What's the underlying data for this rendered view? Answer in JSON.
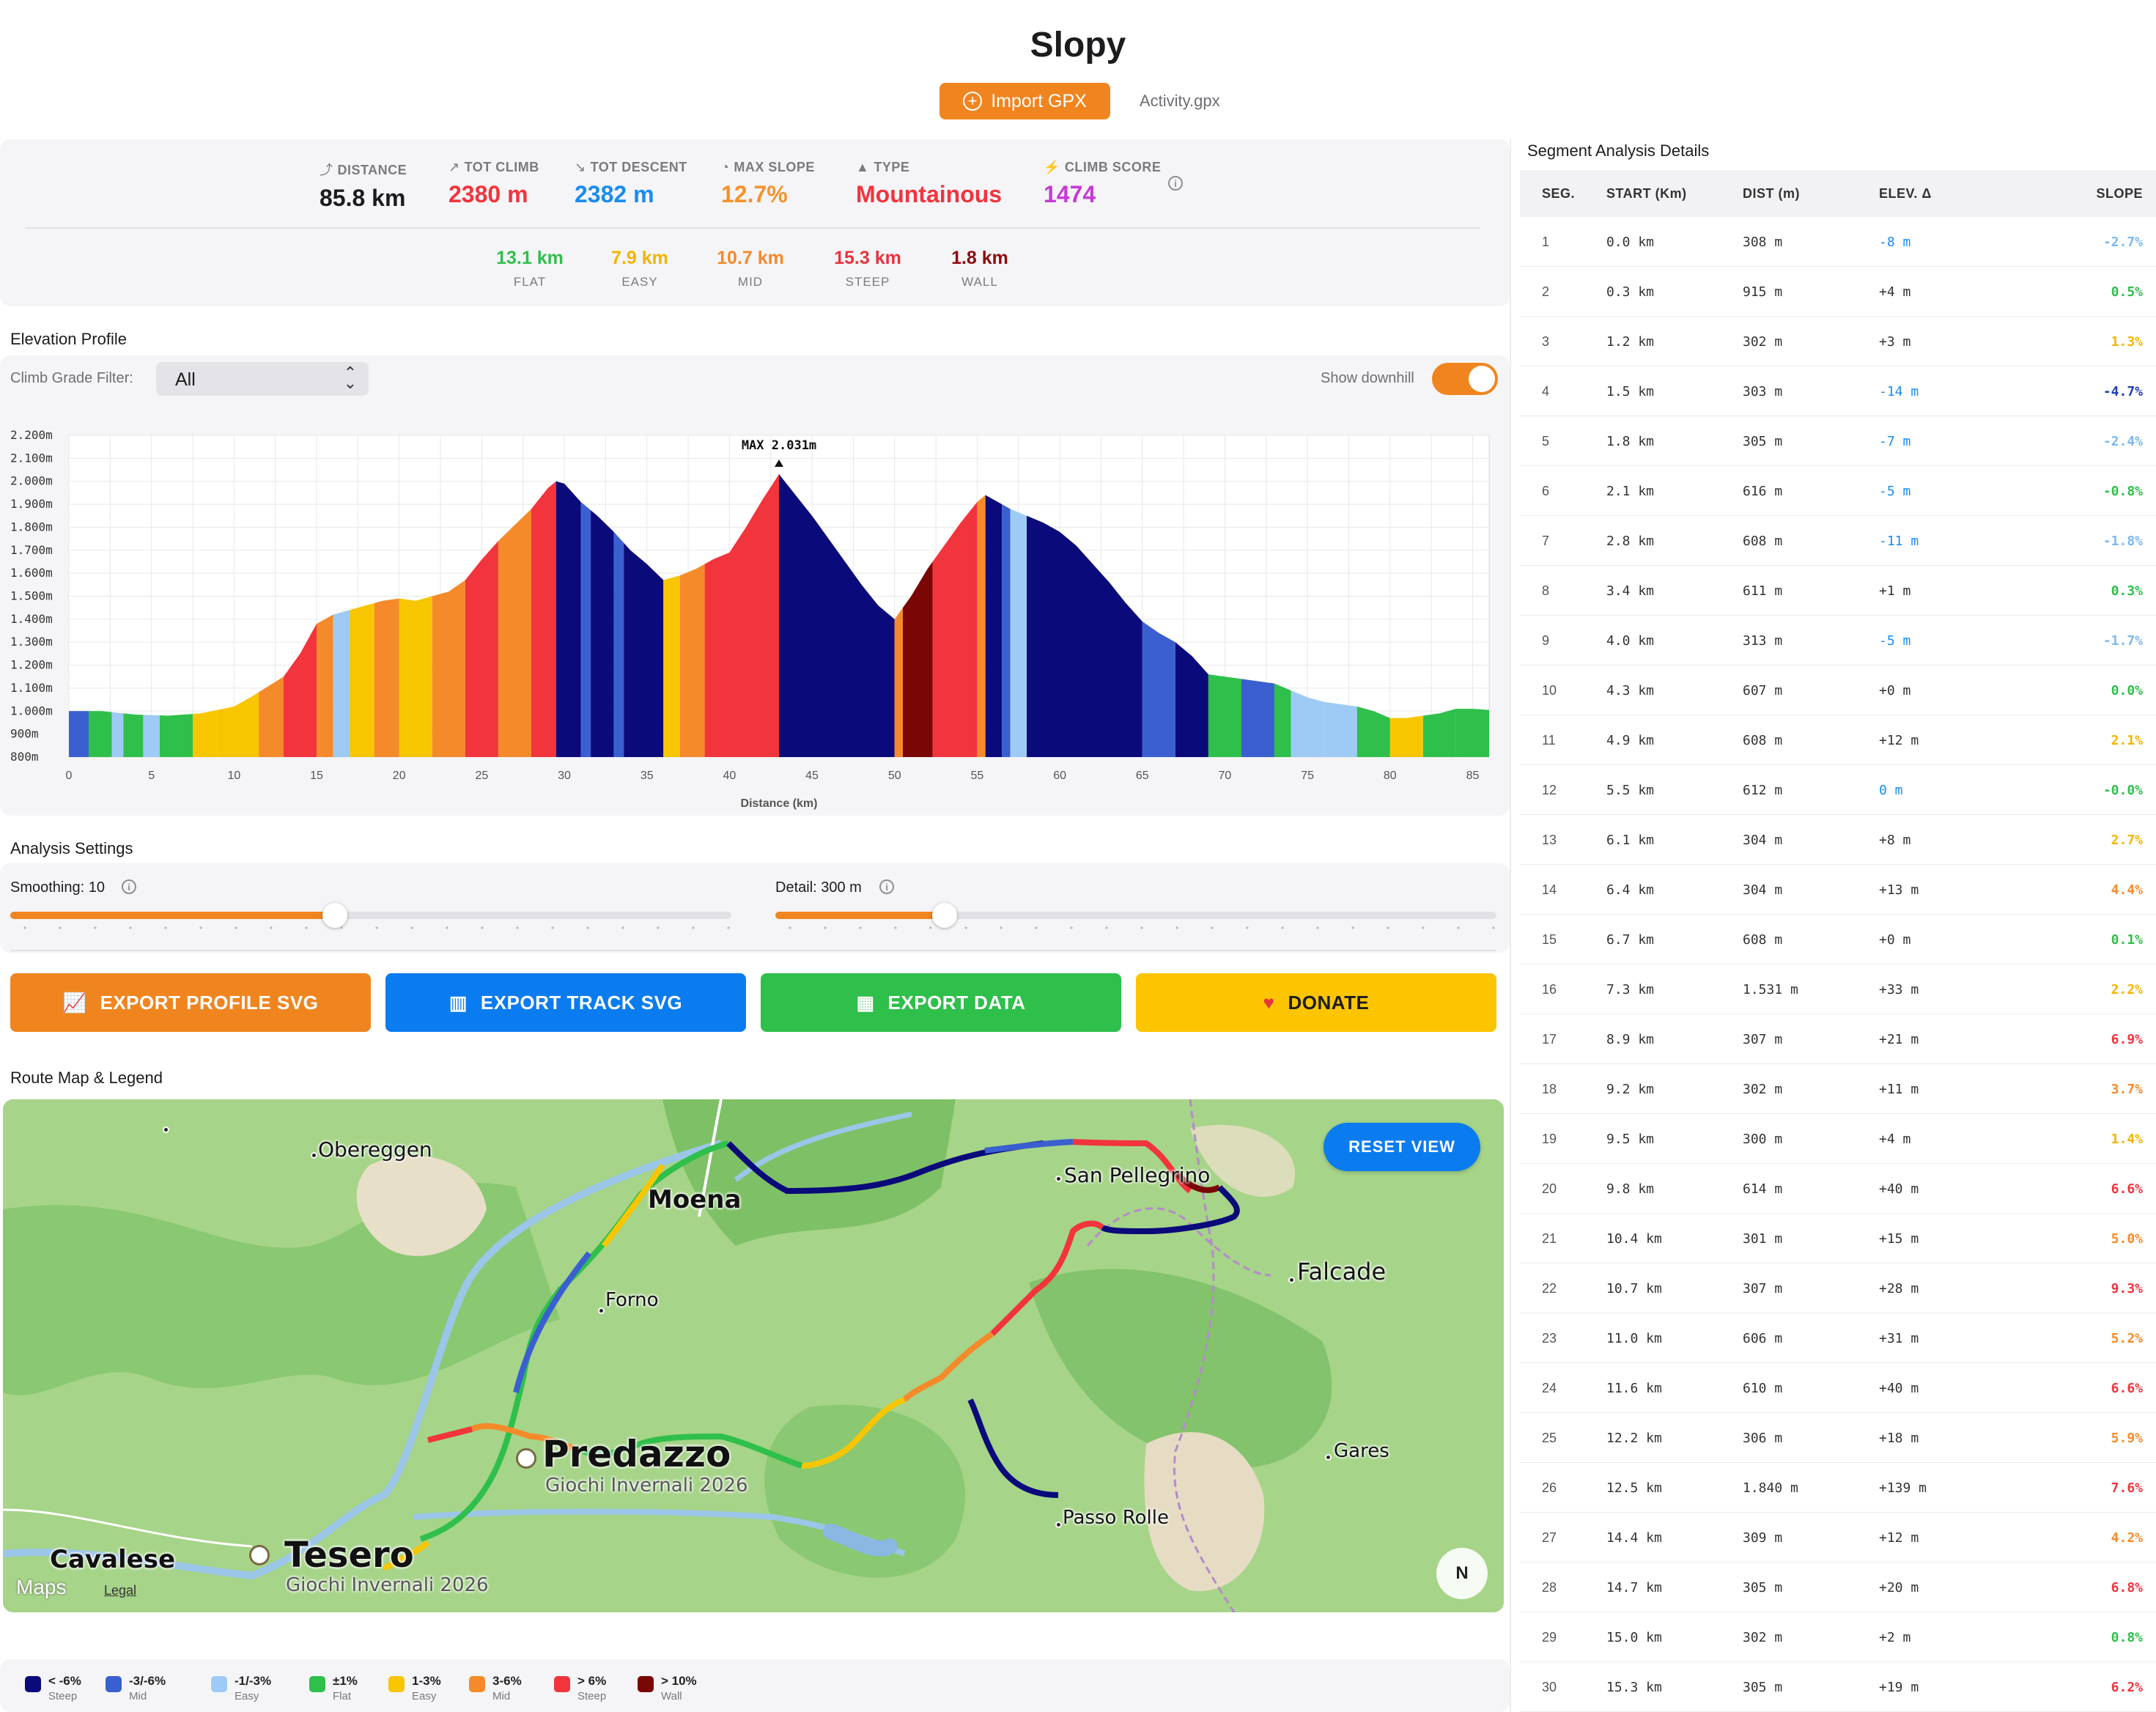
{
  "app": {
    "title": "Slopy",
    "import_label": "Import GPX",
    "filename": "Activity.gpx"
  },
  "stats": [
    {
      "icon": "route-icon",
      "glyph": "⤴",
      "label": "DISTANCE",
      "value": "85.8 km",
      "color": "#1c1c1e"
    },
    {
      "icon": "climb-icon",
      "glyph": "↗",
      "label": "TOT CLIMB",
      "value": "2380 m",
      "color": "#f2343d"
    },
    {
      "icon": "descent-icon",
      "glyph": "↘",
      "label": "TOT DESCENT",
      "value": "2382 m",
      "color": "#1a8cf0"
    },
    {
      "icon": "gauge-icon",
      "glyph": "◔",
      "label": "MAX SLOPE",
      "value": "12.7%",
      "color": "#f5922b"
    },
    {
      "icon": "mountain-icon",
      "glyph": "▲",
      "label": "TYPE",
      "value": "Mountainous",
      "color": "#f2343d"
    },
    {
      "icon": "bolt-icon",
      "glyph": "⚡",
      "label": "CLIMB SCORE",
      "value": "1474",
      "color": "#c73ad8"
    }
  ],
  "categories": [
    {
      "value": "13.1 km",
      "label": "FLAT",
      "color": "#2fbf4b"
    },
    {
      "value": "7.9 km",
      "label": "EASY",
      "color": "#f4b400"
    },
    {
      "value": "10.7 km",
      "label": "MID",
      "color": "#f5882b"
    },
    {
      "value": "15.3 km",
      "label": "STEEP",
      "color": "#e8333d"
    },
    {
      "value": "1.8 km",
      "label": "WALL",
      "color": "#8b0d0d"
    }
  ],
  "elevation": {
    "section_title": "Elevation Profile",
    "filter_label": "Climb Grade Filter:",
    "filter_value": "All",
    "downhill_label": "Show downhill",
    "show_downhill": true,
    "max_label": "MAX 2.031m",
    "x_label": "Distance (km)"
  },
  "chart_data": {
    "type": "area",
    "xlabel": "Distance (km)",
    "ylabel": "",
    "xlim": [
      0,
      86
    ],
    "ylim": [
      800,
      2200
    ],
    "x_ticks": [
      "0",
      "5",
      "10",
      "15",
      "20",
      "25",
      "30",
      "35",
      "40",
      "45",
      "50",
      "55",
      "60",
      "65",
      "70",
      "75",
      "80",
      "85"
    ],
    "y_ticks": [
      "2.200m",
      "2.100m",
      "2.000m",
      "1.900m",
      "1.800m",
      "1.700m",
      "1.600m",
      "1.500m",
      "1.400m",
      "1.300m",
      "1.200m",
      "1.100m",
      "1.000m",
      "900m",
      "800m"
    ],
    "grid": true,
    "annotation": {
      "text": "MAX 2.031m",
      "x": 43,
      "y": 2031
    },
    "profile": [
      [
        0,
        1000
      ],
      [
        2,
        1000
      ],
      [
        4,
        985
      ],
      [
        6,
        980
      ],
      [
        8,
        990
      ],
      [
        10,
        1020
      ],
      [
        11,
        1060
      ],
      [
        13,
        1150
      ],
      [
        14,
        1250
      ],
      [
        15,
        1380
      ],
      [
        16,
        1420
      ],
      [
        17,
        1440
      ],
      [
        18,
        1460
      ],
      [
        19,
        1480
      ],
      [
        20,
        1490
      ],
      [
        21,
        1480
      ],
      [
        22,
        1500
      ],
      [
        23,
        1520
      ],
      [
        24,
        1570
      ],
      [
        25,
        1660
      ],
      [
        26,
        1740
      ],
      [
        27,
        1810
      ],
      [
        28,
        1880
      ],
      [
        29,
        1970
      ],
      [
        29.5,
        2000
      ],
      [
        30,
        1990
      ],
      [
        31,
        1910
      ],
      [
        32,
        1850
      ],
      [
        33,
        1780
      ],
      [
        34,
        1700
      ],
      [
        35,
        1640
      ],
      [
        36,
        1570
      ],
      [
        37,
        1590
      ],
      [
        38,
        1620
      ],
      [
        39,
        1660
      ],
      [
        40,
        1690
      ],
      [
        41,
        1800
      ],
      [
        42,
        1920
      ],
      [
        43,
        2031
      ],
      [
        44,
        1940
      ],
      [
        45,
        1850
      ],
      [
        46,
        1750
      ],
      [
        47,
        1650
      ],
      [
        48,
        1550
      ],
      [
        49,
        1460
      ],
      [
        50,
        1400
      ],
      [
        51,
        1500
      ],
      [
        52,
        1620
      ],
      [
        53,
        1720
      ],
      [
        54,
        1820
      ],
      [
        55,
        1910
      ],
      [
        55.5,
        1940
      ],
      [
        56,
        1920
      ],
      [
        57,
        1880
      ],
      [
        58,
        1850
      ],
      [
        59,
        1820
      ],
      [
        60,
        1780
      ],
      [
        61,
        1720
      ],
      [
        62,
        1640
      ],
      [
        63,
        1560
      ],
      [
        64,
        1470
      ],
      [
        65,
        1390
      ],
      [
        66,
        1340
      ],
      [
        67,
        1300
      ],
      [
        68,
        1240
      ],
      [
        69,
        1160
      ],
      [
        70,
        1150
      ],
      [
        71,
        1140
      ],
      [
        72,
        1130
      ],
      [
        73,
        1120
      ],
      [
        74,
        1090
      ],
      [
        75,
        1060
      ],
      [
        76,
        1040
      ],
      [
        77,
        1030
      ],
      [
        78,
        1020
      ],
      [
        79,
        1000
      ],
      [
        80,
        970
      ],
      [
        81,
        970
      ],
      [
        82,
        980
      ],
      [
        83,
        990
      ],
      [
        84,
        1010
      ],
      [
        85,
        1010
      ],
      [
        86,
        1005
      ]
    ],
    "segments": [
      {
        "from": 0,
        "to": 1.2,
        "grade": "mid-down"
      },
      {
        "from": 1.2,
        "to": 2.6,
        "grade": "flat"
      },
      {
        "from": 2.6,
        "to": 3.3,
        "grade": "easy-down"
      },
      {
        "from": 3.3,
        "to": 4.5,
        "grade": "flat"
      },
      {
        "from": 4.5,
        "to": 5.5,
        "grade": "easy-down"
      },
      {
        "from": 5.5,
        "to": 7.5,
        "grade": "flat"
      },
      {
        "from": 7.5,
        "to": 9,
        "grade": "easy"
      },
      {
        "from": 9,
        "to": 11.5,
        "grade": "easy"
      },
      {
        "from": 11.5,
        "to": 13,
        "grade": "mid"
      },
      {
        "from": 13,
        "to": 15,
        "grade": "steep"
      },
      {
        "from": 15,
        "to": 16,
        "grade": "mid"
      },
      {
        "from": 16,
        "to": 17,
        "grade": "easy-down"
      },
      {
        "from": 17,
        "to": 18.5,
        "grade": "easy"
      },
      {
        "from": 18.5,
        "to": 20,
        "grade": "mid"
      },
      {
        "from": 20,
        "to": 22,
        "grade": "easy"
      },
      {
        "from": 22,
        "to": 24,
        "grade": "mid"
      },
      {
        "from": 24,
        "to": 26,
        "grade": "steep"
      },
      {
        "from": 26,
        "to": 28,
        "grade": "mid"
      },
      {
        "from": 28,
        "to": 29.5,
        "grade": "steep"
      },
      {
        "from": 29.5,
        "to": 31,
        "grade": "steep-down"
      },
      {
        "from": 31,
        "to": 31.6,
        "grade": "mid-down"
      },
      {
        "from": 31.6,
        "to": 33,
        "grade": "steep-down"
      },
      {
        "from": 33,
        "to": 33.6,
        "grade": "mid-down"
      },
      {
        "from": 33.6,
        "to": 36,
        "grade": "steep-down"
      },
      {
        "from": 36,
        "to": 37,
        "grade": "easy"
      },
      {
        "from": 37,
        "to": 38.5,
        "grade": "mid"
      },
      {
        "from": 38.5,
        "to": 43,
        "grade": "steep"
      },
      {
        "from": 43,
        "to": 50,
        "grade": "steep-down"
      },
      {
        "from": 50,
        "to": 50.5,
        "grade": "mid"
      },
      {
        "from": 50.5,
        "to": 52.3,
        "grade": "wall"
      },
      {
        "from": 52.3,
        "to": 55,
        "grade": "steep"
      },
      {
        "from": 55,
        "to": 55.5,
        "grade": "mid"
      },
      {
        "from": 55.5,
        "to": 56.5,
        "grade": "steep-down"
      },
      {
        "from": 56.5,
        "to": 57,
        "grade": "mid-down"
      },
      {
        "from": 57,
        "to": 58,
        "grade": "easy-down"
      },
      {
        "from": 58,
        "to": 65,
        "grade": "steep-down"
      },
      {
        "from": 65,
        "to": 67,
        "grade": "mid-down"
      },
      {
        "from": 67,
        "to": 69,
        "grade": "steep-down"
      },
      {
        "from": 69,
        "to": 71,
        "grade": "flat"
      },
      {
        "from": 71,
        "to": 73,
        "grade": "mid-down"
      },
      {
        "from": 73,
        "to": 74,
        "grade": "flat"
      },
      {
        "from": 74,
        "to": 76,
        "grade": "easy-down"
      },
      {
        "from": 76,
        "to": 78,
        "grade": "easy-down"
      },
      {
        "from": 78,
        "to": 80,
        "grade": "flat"
      },
      {
        "from": 80,
        "to": 82,
        "grade": "easy"
      },
      {
        "from": 82,
        "to": 84,
        "grade": "flat"
      },
      {
        "from": 84,
        "to": 86,
        "grade": "flat"
      }
    ],
    "grade_colors": {
      "steep-down": "#0a0a7a",
      "mid-down": "#3a5fd0",
      "easy-down": "#9ecbf5",
      "flat": "#2fbf4b",
      "easy": "#f7c600",
      "mid": "#f58a2b",
      "steep": "#f2343d",
      "wall": "#7a0606"
    }
  },
  "analysis": {
    "section_title": "Analysis Settings",
    "smoothing_label": "Smoothing: 10",
    "smoothing_fraction": 0.45,
    "detail_label": "Detail: 300 m",
    "detail_fraction": 0.235
  },
  "buttons": [
    {
      "label": "EXPORT PROFILE SVG",
      "icon": "chart-icon",
      "glyph": "📈",
      "color": "#f0851f"
    },
    {
      "label": "EXPORT TRACK SVG",
      "icon": "map-icon",
      "glyph": "▥",
      "color": "#0a7cf0"
    },
    {
      "label": "EXPORT DATA",
      "icon": "table-icon",
      "glyph": "▦",
      "color": "#2fbf4b"
    },
    {
      "label": "DONATE",
      "icon": "heart-icon",
      "glyph": "♥",
      "color": "#fcc500"
    }
  ],
  "map": {
    "section_title": "Route Map & Legend",
    "reset_label": "RESET VIEW",
    "compass_label": "N",
    "attribution": "Maps",
    "legal": "Legal",
    "places": [
      {
        "name": "Obereggen"
      },
      {
        "name": "Moena"
      },
      {
        "name": "San Pellegrino"
      },
      {
        "name": "Falcade"
      },
      {
        "name": "Forno"
      },
      {
        "name": "Predazzo"
      },
      {
        "name": "Giochi Invernali 2026"
      },
      {
        "name": "Gares"
      },
      {
        "name": "Passo Rolle"
      },
      {
        "name": "Cavalese"
      },
      {
        "name": "Tesero"
      },
      {
        "name": "Giochi Invernali 2026"
      }
    ]
  },
  "legend": [
    {
      "top": "< -6%",
      "bottom": "Steep",
      "color": "#0a0a7a"
    },
    {
      "top": "-3/-6%",
      "bottom": "Mid",
      "color": "#3a5fd0"
    },
    {
      "top": "-1/-3%",
      "bottom": "Easy",
      "color": "#9ecbf5"
    },
    {
      "top": "±1%",
      "bottom": "Flat",
      "color": "#2fbf4b"
    },
    {
      "top": "1-3%",
      "bottom": "Easy",
      "color": "#f7c600"
    },
    {
      "top": "3-6%",
      "bottom": "Mid",
      "color": "#f58a2b"
    },
    {
      "top": "> 6%",
      "bottom": "Steep",
      "color": "#f2343d"
    },
    {
      "top": "> 10%",
      "bottom": "Wall",
      "color": "#7a0606"
    }
  ],
  "table": {
    "title": "Segment Analysis Details",
    "headers": [
      "SEG.",
      "START (Km)",
      "DIST (m)",
      "ELEV. Δ",
      "SLOPE"
    ],
    "rows": [
      [
        "1",
        "0.0 km",
        "308 m",
        "-8 m",
        "-2.7%",
        "#7ab8f0",
        "#1a8cf0"
      ],
      [
        "2",
        "0.3 km",
        "915 m",
        "+4 m",
        "0.5%",
        "#2fbf4b",
        "#333"
      ],
      [
        "3",
        "1.2 km",
        "302 m",
        "+3 m",
        "1.3%",
        "#f4b400",
        "#333"
      ],
      [
        "4",
        "1.5 km",
        "303 m",
        "-14 m",
        "-4.7%",
        "#1f3fae",
        "#1a8cf0"
      ],
      [
        "5",
        "1.8 km",
        "305 m",
        "-7 m",
        "-2.4%",
        "#7ab8f0",
        "#1a8cf0"
      ],
      [
        "6",
        "2.1 km",
        "616 m",
        "-5 m",
        "-0.8%",
        "#2fbf4b",
        "#1a8cf0"
      ],
      [
        "7",
        "2.8 km",
        "608 m",
        "-11 m",
        "-1.8%",
        "#7ab8f0",
        "#1a8cf0"
      ],
      [
        "8",
        "3.4 km",
        "611 m",
        "+1 m",
        "0.3%",
        "#2fbf4b",
        "#333"
      ],
      [
        "9",
        "4.0 km",
        "313 m",
        "-5 m",
        "-1.7%",
        "#7ab8f0",
        "#1a8cf0"
      ],
      [
        "10",
        "4.3 km",
        "607 m",
        "+0 m",
        "0.0%",
        "#2fbf4b",
        "#333"
      ],
      [
        "11",
        "4.9 km",
        "608 m",
        "+12 m",
        "2.1%",
        "#f4b400",
        "#333"
      ],
      [
        "12",
        "5.5 km",
        "612 m",
        "0 m",
        "-0.0%",
        "#2fbf4b",
        "#1a8cf0"
      ],
      [
        "13",
        "6.1 km",
        "304 m",
        "+8 m",
        "2.7%",
        "#f4b400",
        "#333"
      ],
      [
        "14",
        "6.4 km",
        "304 m",
        "+13 m",
        "4.4%",
        "#f58a2b",
        "#333"
      ],
      [
        "15",
        "6.7 km",
        "608 m",
        "+0 m",
        "0.1%",
        "#2fbf4b",
        "#333"
      ],
      [
        "16",
        "7.3 km",
        "1.531 m",
        "+33 m",
        "2.2%",
        "#f4b400",
        "#333"
      ],
      [
        "17",
        "8.9 km",
        "307 m",
        "+21 m",
        "6.9%",
        "#f2343d",
        "#333"
      ],
      [
        "18",
        "9.2 km",
        "302 m",
        "+11 m",
        "3.7%",
        "#f58a2b",
        "#333"
      ],
      [
        "19",
        "9.5 km",
        "300 m",
        "+4 m",
        "1.4%",
        "#f4b400",
        "#333"
      ],
      [
        "20",
        "9.8 km",
        "614 m",
        "+40 m",
        "6.6%",
        "#f2343d",
        "#333"
      ],
      [
        "21",
        "10.4 km",
        "301 m",
        "+15 m",
        "5.0%",
        "#f58a2b",
        "#333"
      ],
      [
        "22",
        "10.7 km",
        "307 m",
        "+28 m",
        "9.3%",
        "#f2343d",
        "#333"
      ],
      [
        "23",
        "11.0 km",
        "606 m",
        "+31 m",
        "5.2%",
        "#f58a2b",
        "#333"
      ],
      [
        "24",
        "11.6 km",
        "610 m",
        "+40 m",
        "6.6%",
        "#f2343d",
        "#333"
      ],
      [
        "25",
        "12.2 km",
        "306 m",
        "+18 m",
        "5.9%",
        "#f58a2b",
        "#333"
      ],
      [
        "26",
        "12.5 km",
        "1.840 m",
        "+139 m",
        "7.6%",
        "#f2343d",
        "#333"
      ],
      [
        "27",
        "14.4 km",
        "309 m",
        "+12 m",
        "4.2%",
        "#f58a2b",
        "#333"
      ],
      [
        "28",
        "14.7 km",
        "305 m",
        "+20 m",
        "6.8%",
        "#f2343d",
        "#333"
      ],
      [
        "29",
        "15.0 km",
        "302 m",
        "+2 m",
        "0.8%",
        "#2fbf4b",
        "#333"
      ],
      [
        "30",
        "15.3 km",
        "305 m",
        "+19 m",
        "6.2%",
        "#f2343d",
        "#333"
      ]
    ]
  }
}
